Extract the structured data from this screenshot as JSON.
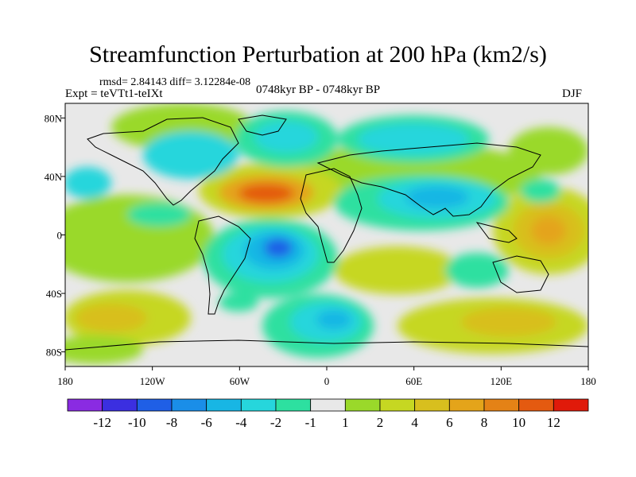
{
  "title": "Streamfunction Perturbation at 200 hPa (km2/s)",
  "stats_line": "rmsd= 2.84143 diff= 3.12284e-08",
  "experiment": "Expt = teVTt1-teIXt",
  "period": "0748kyr BP - 0748kyr BP",
  "season": "DJF",
  "axes": {
    "lat_ticks": [
      {
        "label": "80N",
        "value": 80
      },
      {
        "label": "40N",
        "value": 40
      },
      {
        "label": "0",
        "value": 0
      },
      {
        "label": "40S",
        "value": -40
      },
      {
        "label": "80S",
        "value": -80
      }
    ],
    "lon_ticks": [
      {
        "label": "180",
        "value": -180
      },
      {
        "label": "120W",
        "value": -120
      },
      {
        "label": "60W",
        "value": -60
      },
      {
        "label": "0",
        "value": 0
      },
      {
        "label": "60E",
        "value": 60
      },
      {
        "label": "120E",
        "value": 120
      },
      {
        "label": "180",
        "value": 180
      }
    ],
    "lon_range": [
      -180,
      180
    ],
    "lat_range": [
      -90,
      90
    ]
  },
  "colorbar": {
    "colors": [
      "#8a2be2",
      "#3b2fe0",
      "#1f5fe6",
      "#1a8ee8",
      "#18b6e4",
      "#26d6dc",
      "#2de0a0",
      "#e8e8e8",
      "#9ad92a",
      "#c6d722",
      "#d8bf1e",
      "#e4a41a",
      "#e48216",
      "#e45a10",
      "#e01a0a"
    ],
    "labels": [
      "-12",
      "-10",
      "-8",
      "-6",
      "-4",
      "-2",
      "-1",
      "1",
      "2",
      "4",
      "6",
      "8",
      "10",
      "12"
    ]
  }
}
